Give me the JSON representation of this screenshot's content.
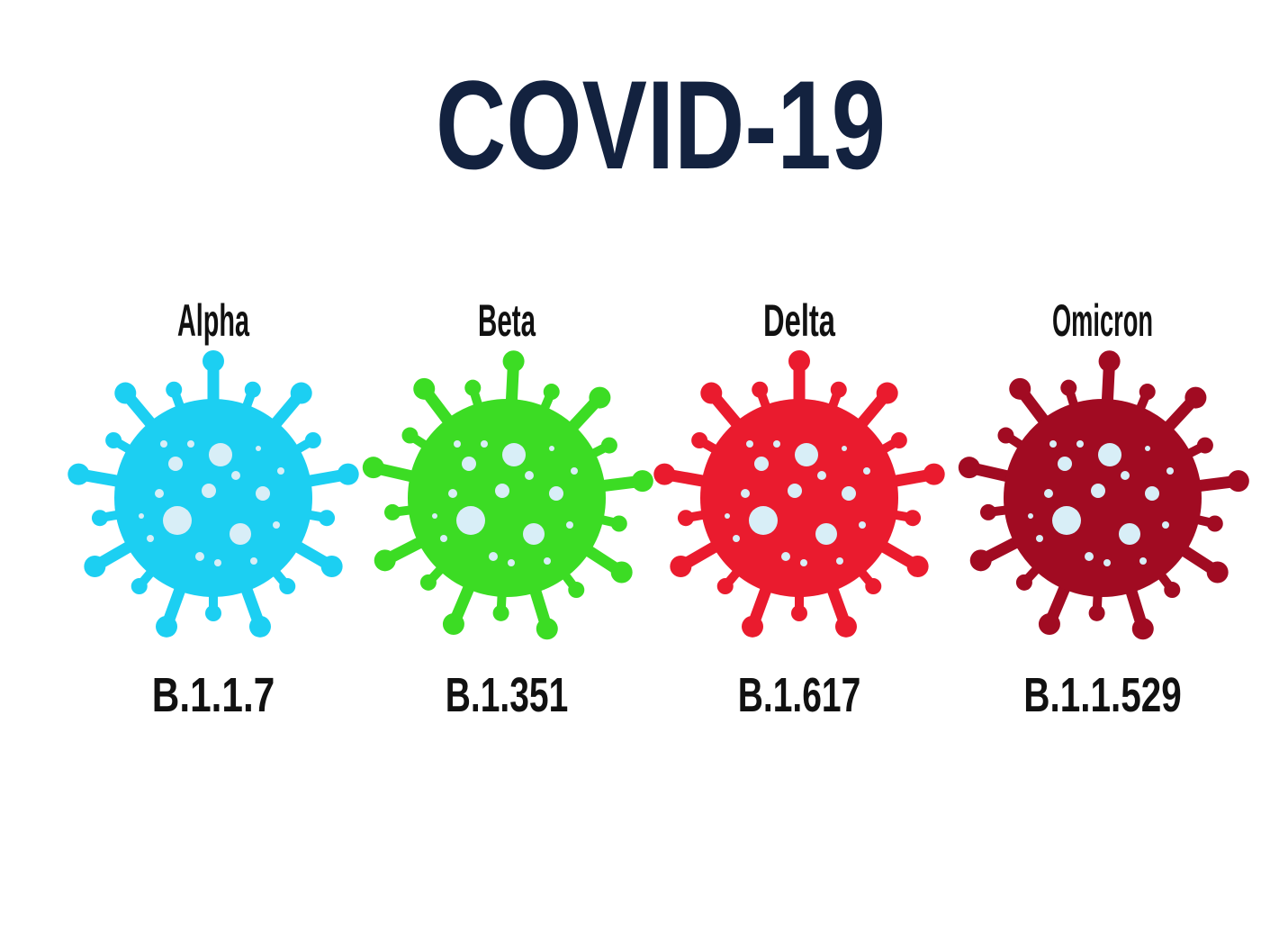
{
  "title": "COVID-19",
  "variants": [
    {
      "name": "Alpha",
      "lineage": "B.1.1.7",
      "color": "#1ccff2"
    },
    {
      "name": "Beta",
      "lineage": "B.1.351",
      "color": "#3cdc24"
    },
    {
      "name": "Delta",
      "lineage": "B.1.617",
      "color": "#ea1b2e"
    },
    {
      "name": "Omicron",
      "lineage": "B.1.1.529",
      "color": "#a10b22"
    }
  ]
}
